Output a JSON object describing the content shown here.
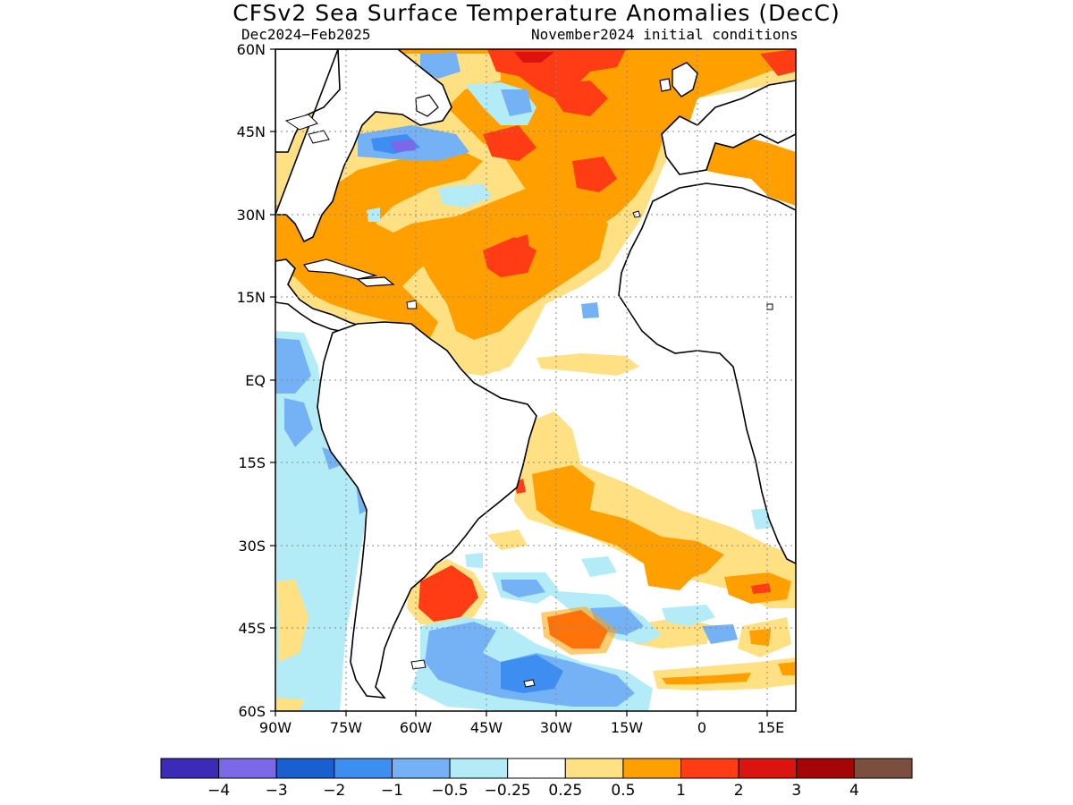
{
  "title": "CFSv2 Sea Surface Temperature Anomalies (DecC)",
  "period": "Dec2024−Feb2025",
  "init": "November2024 initial conditions",
  "lat_labels": [
    "60N",
    "45N",
    "30N",
    "15N",
    "EQ",
    "15S",
    "30S",
    "45S",
    "60S"
  ],
  "lon_labels": [
    "90W",
    "75W",
    "60W",
    "45W",
    "30W",
    "15W",
    "0",
    "15E"
  ],
  "colorbar": {
    "colors": [
      "#3c2bb8",
      "#7b68e8",
      "#1a5fcf",
      "#3d8ef0",
      "#74b2f5",
      "#b3ecf7",
      "#ffffff",
      "#ffe083",
      "#ffa000",
      "#ff3c13",
      "#dc1410",
      "#a50505",
      "#7a4f3f"
    ],
    "labels": [
      "−4",
      "−3",
      "−2",
      "−1",
      "−0.5",
      "−0.25",
      "0.25",
      "0.5",
      "1",
      "2",
      "3",
      "4"
    ]
  },
  "map": {
    "land_color": "#ffffff",
    "coast_color": "#000000",
    "grid_style": "dotted"
  }
}
